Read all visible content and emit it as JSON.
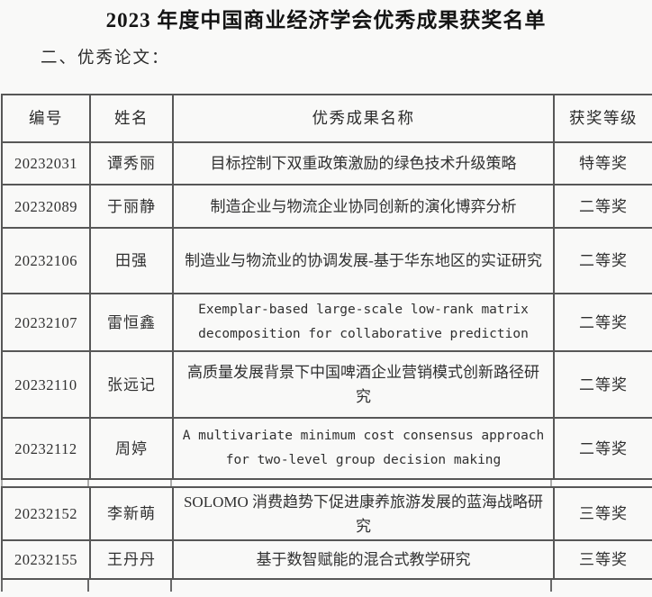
{
  "page": {
    "title": "2023 年度中国商业经济学会优秀成果获奖名单",
    "section_label": "二、优秀论文："
  },
  "colors": {
    "background": "#f9f9f8",
    "table_border": "#575757",
    "text": "#2d2d2d",
    "title_text": "#141414"
  },
  "table": {
    "headers": [
      "编号",
      "姓名",
      "优秀成果名称",
      "获奖等级"
    ],
    "rows": [
      {
        "id": "20232031",
        "name": "谭秀丽",
        "work": "目标控制下双重政策激励的绿色技术升级策略",
        "award": "特等奖"
      },
      {
        "id": "20232089",
        "name": "于丽静",
        "work": "制造企业与物流企业协同创新的演化博弈分析",
        "award": "二等奖"
      },
      {
        "id": "20232106",
        "name": "田强",
        "work": "制造业与物流业的协调发展-基于华东地区的实证研究",
        "award": "二等奖"
      },
      {
        "id": "20232107",
        "name": "雷恒鑫",
        "work": "Exemplar-based large-scale low-rank matrix decomposition for collaborative prediction",
        "award": "二等奖"
      },
      {
        "id": "20232110",
        "name": "张远记",
        "work": "高质量发展背景下中国啤酒企业营销模式创新路径研究",
        "award": "二等奖"
      },
      {
        "id": "20232112",
        "name": "周婷",
        "work": "A multivariate minimum cost consensus approach for two-level group decision making",
        "award": "二等奖"
      },
      {
        "id": "20232152",
        "name": "李新萌",
        "work": "SOLOMO 消费趋势下促进康养旅游发展的蓝海战略研究",
        "award": "三等奖"
      },
      {
        "id": "20232155",
        "name": "王丹丹",
        "work": "基于数智赋能的混合式教学研究",
        "award": "三等奖"
      }
    ]
  }
}
